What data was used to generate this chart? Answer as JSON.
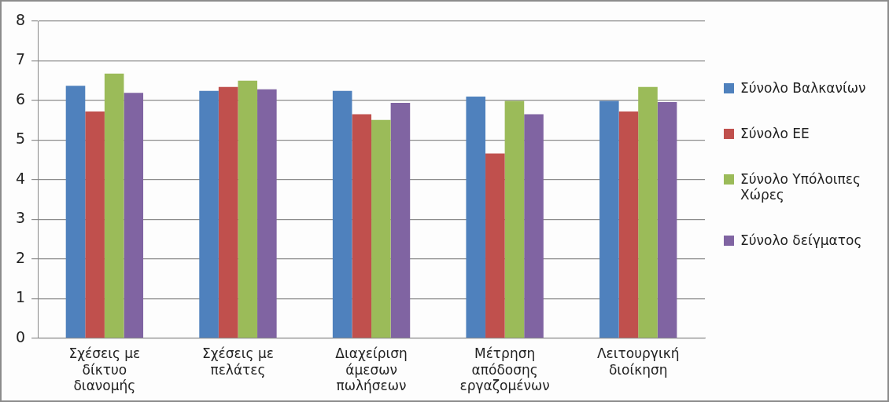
{
  "chart_data": {
    "type": "bar",
    "categories": [
      "Σχέσεις με δίκτυο διανομής",
      "Σχέσεις με πελάτες",
      "Διαχείριση άμεσων πωλήσεων",
      "Μέτρηση απόδοσης εργαζομένων",
      "Λειτουργική διοίκηση"
    ],
    "series": [
      {
        "name": "Σύνολο Βαλκανίων",
        "color": "#4f81bd",
        "values": [
          6.37,
          6.24,
          6.24,
          6.1,
          5.99
        ]
      },
      {
        "name": "Σύνολο ΕΕ",
        "color": "#c0504d",
        "values": [
          5.72,
          6.34,
          5.65,
          4.66,
          5.72
        ]
      },
      {
        "name": "Σύνολο Υπόλοιπες Χώρες",
        "color": "#9bbb59",
        "values": [
          6.68,
          6.5,
          5.51,
          5.99,
          6.34
        ]
      },
      {
        "name": "Σύνολο δείγματος",
        "color": "#8064a2",
        "values": [
          6.19,
          6.28,
          5.94,
          5.65,
          5.96
        ]
      }
    ],
    "ylim": [
      0,
      8
    ],
    "yticks": [
      0,
      1,
      2,
      3,
      4,
      5,
      6,
      7,
      8
    ],
    "grid": "y",
    "legend": "right"
  }
}
